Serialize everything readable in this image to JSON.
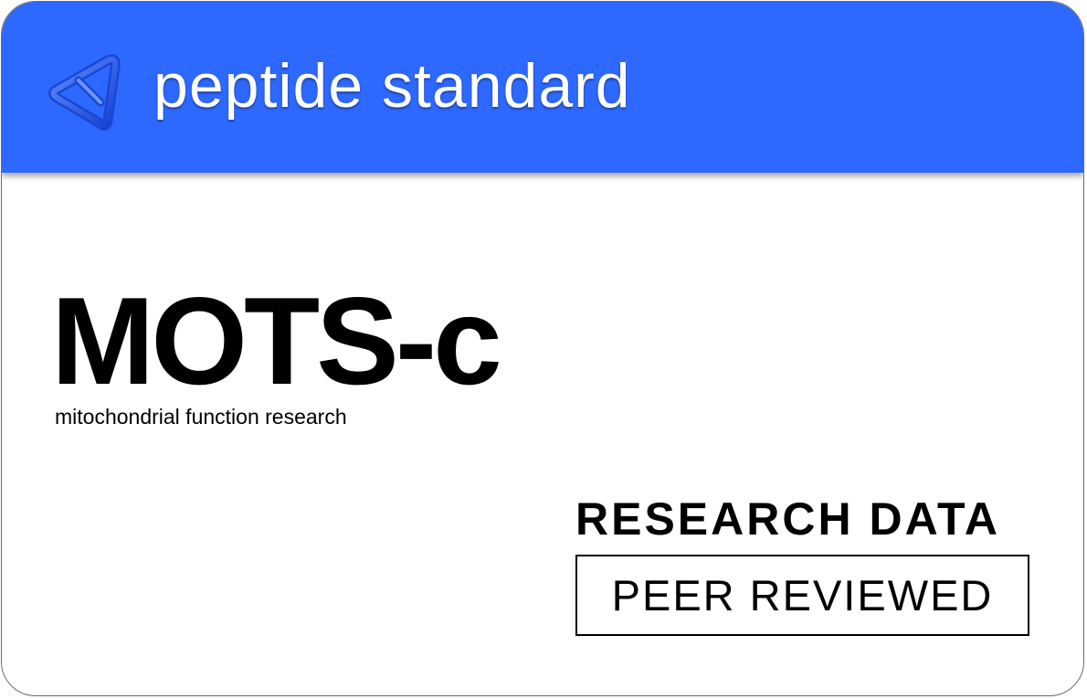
{
  "header": {
    "brand_name": "peptide standard",
    "logo_icon": "twisted-triangle-logo-icon",
    "background_color": "#2d68ff"
  },
  "product": {
    "name": "MOTS-c",
    "subtitle": "mitochondrial function research"
  },
  "badges": {
    "research_label": "RESEARCH DATA",
    "review_label": "PEER REVIEWED"
  }
}
